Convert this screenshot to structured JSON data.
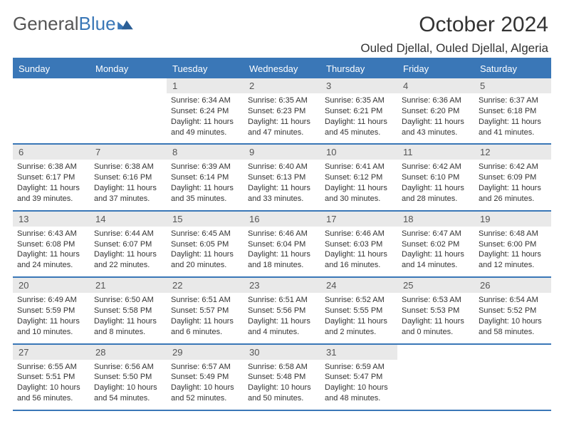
{
  "brand": {
    "part1": "General",
    "part2": "Blue"
  },
  "header": {
    "title": "October 2024",
    "location": "Ouled Djellal, Ouled Djellal, Algeria"
  },
  "colors": {
    "accent": "#3a77b7",
    "band": "#e9e9e9",
    "text": "#333333",
    "headerText": "#ffffff",
    "background": "#ffffff"
  },
  "day_names": [
    "Sunday",
    "Monday",
    "Tuesday",
    "Wednesday",
    "Thursday",
    "Friday",
    "Saturday"
  ],
  "weeks": [
    [
      {
        "day": "",
        "sunrise": "",
        "sunset": "",
        "daylight": ""
      },
      {
        "day": "",
        "sunrise": "",
        "sunset": "",
        "daylight": ""
      },
      {
        "day": "1",
        "sunrise": "Sunrise: 6:34 AM",
        "sunset": "Sunset: 6:24 PM",
        "daylight": "Daylight: 11 hours and 49 minutes."
      },
      {
        "day": "2",
        "sunrise": "Sunrise: 6:35 AM",
        "sunset": "Sunset: 6:23 PM",
        "daylight": "Daylight: 11 hours and 47 minutes."
      },
      {
        "day": "3",
        "sunrise": "Sunrise: 6:35 AM",
        "sunset": "Sunset: 6:21 PM",
        "daylight": "Daylight: 11 hours and 45 minutes."
      },
      {
        "day": "4",
        "sunrise": "Sunrise: 6:36 AM",
        "sunset": "Sunset: 6:20 PM",
        "daylight": "Daylight: 11 hours and 43 minutes."
      },
      {
        "day": "5",
        "sunrise": "Sunrise: 6:37 AM",
        "sunset": "Sunset: 6:18 PM",
        "daylight": "Daylight: 11 hours and 41 minutes."
      }
    ],
    [
      {
        "day": "6",
        "sunrise": "Sunrise: 6:38 AM",
        "sunset": "Sunset: 6:17 PM",
        "daylight": "Daylight: 11 hours and 39 minutes."
      },
      {
        "day": "7",
        "sunrise": "Sunrise: 6:38 AM",
        "sunset": "Sunset: 6:16 PM",
        "daylight": "Daylight: 11 hours and 37 minutes."
      },
      {
        "day": "8",
        "sunrise": "Sunrise: 6:39 AM",
        "sunset": "Sunset: 6:14 PM",
        "daylight": "Daylight: 11 hours and 35 minutes."
      },
      {
        "day": "9",
        "sunrise": "Sunrise: 6:40 AM",
        "sunset": "Sunset: 6:13 PM",
        "daylight": "Daylight: 11 hours and 33 minutes."
      },
      {
        "day": "10",
        "sunrise": "Sunrise: 6:41 AM",
        "sunset": "Sunset: 6:12 PM",
        "daylight": "Daylight: 11 hours and 30 minutes."
      },
      {
        "day": "11",
        "sunrise": "Sunrise: 6:42 AM",
        "sunset": "Sunset: 6:10 PM",
        "daylight": "Daylight: 11 hours and 28 minutes."
      },
      {
        "day": "12",
        "sunrise": "Sunrise: 6:42 AM",
        "sunset": "Sunset: 6:09 PM",
        "daylight": "Daylight: 11 hours and 26 minutes."
      }
    ],
    [
      {
        "day": "13",
        "sunrise": "Sunrise: 6:43 AM",
        "sunset": "Sunset: 6:08 PM",
        "daylight": "Daylight: 11 hours and 24 minutes."
      },
      {
        "day": "14",
        "sunrise": "Sunrise: 6:44 AM",
        "sunset": "Sunset: 6:07 PM",
        "daylight": "Daylight: 11 hours and 22 minutes."
      },
      {
        "day": "15",
        "sunrise": "Sunrise: 6:45 AM",
        "sunset": "Sunset: 6:05 PM",
        "daylight": "Daylight: 11 hours and 20 minutes."
      },
      {
        "day": "16",
        "sunrise": "Sunrise: 6:46 AM",
        "sunset": "Sunset: 6:04 PM",
        "daylight": "Daylight: 11 hours and 18 minutes."
      },
      {
        "day": "17",
        "sunrise": "Sunrise: 6:46 AM",
        "sunset": "Sunset: 6:03 PM",
        "daylight": "Daylight: 11 hours and 16 minutes."
      },
      {
        "day": "18",
        "sunrise": "Sunrise: 6:47 AM",
        "sunset": "Sunset: 6:02 PM",
        "daylight": "Daylight: 11 hours and 14 minutes."
      },
      {
        "day": "19",
        "sunrise": "Sunrise: 6:48 AM",
        "sunset": "Sunset: 6:00 PM",
        "daylight": "Daylight: 11 hours and 12 minutes."
      }
    ],
    [
      {
        "day": "20",
        "sunrise": "Sunrise: 6:49 AM",
        "sunset": "Sunset: 5:59 PM",
        "daylight": "Daylight: 11 hours and 10 minutes."
      },
      {
        "day": "21",
        "sunrise": "Sunrise: 6:50 AM",
        "sunset": "Sunset: 5:58 PM",
        "daylight": "Daylight: 11 hours and 8 minutes."
      },
      {
        "day": "22",
        "sunrise": "Sunrise: 6:51 AM",
        "sunset": "Sunset: 5:57 PM",
        "daylight": "Daylight: 11 hours and 6 minutes."
      },
      {
        "day": "23",
        "sunrise": "Sunrise: 6:51 AM",
        "sunset": "Sunset: 5:56 PM",
        "daylight": "Daylight: 11 hours and 4 minutes."
      },
      {
        "day": "24",
        "sunrise": "Sunrise: 6:52 AM",
        "sunset": "Sunset: 5:55 PM",
        "daylight": "Daylight: 11 hours and 2 minutes."
      },
      {
        "day": "25",
        "sunrise": "Sunrise: 6:53 AM",
        "sunset": "Sunset: 5:53 PM",
        "daylight": "Daylight: 11 hours and 0 minutes."
      },
      {
        "day": "26",
        "sunrise": "Sunrise: 6:54 AM",
        "sunset": "Sunset: 5:52 PM",
        "daylight": "Daylight: 10 hours and 58 minutes."
      }
    ],
    [
      {
        "day": "27",
        "sunrise": "Sunrise: 6:55 AM",
        "sunset": "Sunset: 5:51 PM",
        "daylight": "Daylight: 10 hours and 56 minutes."
      },
      {
        "day": "28",
        "sunrise": "Sunrise: 6:56 AM",
        "sunset": "Sunset: 5:50 PM",
        "daylight": "Daylight: 10 hours and 54 minutes."
      },
      {
        "day": "29",
        "sunrise": "Sunrise: 6:57 AM",
        "sunset": "Sunset: 5:49 PM",
        "daylight": "Daylight: 10 hours and 52 minutes."
      },
      {
        "day": "30",
        "sunrise": "Sunrise: 6:58 AM",
        "sunset": "Sunset: 5:48 PM",
        "daylight": "Daylight: 10 hours and 50 minutes."
      },
      {
        "day": "31",
        "sunrise": "Sunrise: 6:59 AM",
        "sunset": "Sunset: 5:47 PM",
        "daylight": "Daylight: 10 hours and 48 minutes."
      },
      {
        "day": "",
        "sunrise": "",
        "sunset": "",
        "daylight": ""
      },
      {
        "day": "",
        "sunrise": "",
        "sunset": "",
        "daylight": ""
      }
    ]
  ]
}
